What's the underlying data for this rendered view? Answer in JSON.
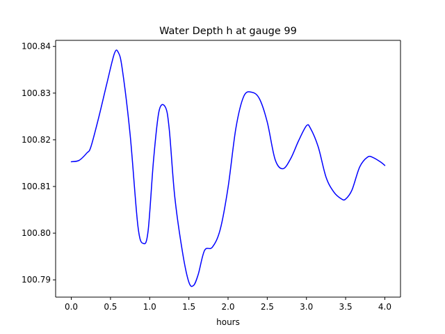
{
  "chart_data": {
    "type": "line",
    "title": "Water Depth h at gauge 99",
    "xlabel": "hours",
    "ylabel": "",
    "xlim": [
      -0.2,
      4.2
    ],
    "ylim": [
      100.7863,
      100.8413
    ],
    "grid": false,
    "legend": "none",
    "x_ticks": [
      0.0,
      0.5,
      1.0,
      1.5,
      2.0,
      2.5,
      3.0,
      3.5,
      4.0
    ],
    "x_tick_labels": [
      "0.0",
      "0.5",
      "1.0",
      "1.5",
      "2.0",
      "2.5",
      "3.0",
      "3.5",
      "4.0"
    ],
    "y_ticks": [
      100.79,
      100.8,
      100.81,
      100.82,
      100.83,
      100.84
    ],
    "y_tick_labels": [
      "100.79",
      "100.80",
      "100.81",
      "100.82",
      "100.83",
      "100.84"
    ],
    "series": [
      {
        "name": "h",
        "color": "#0000ff",
        "x": [
          0.0,
          0.1,
          0.2,
          0.25,
          0.35,
          0.45,
          0.55,
          0.6,
          0.65,
          0.75,
          0.85,
          0.92,
          0.98,
          1.05,
          1.12,
          1.2,
          1.25,
          1.32,
          1.42,
          1.5,
          1.56,
          1.62,
          1.7,
          1.8,
          1.9,
          2.0,
          2.1,
          2.2,
          2.3,
          2.4,
          2.5,
          2.6,
          2.7,
          2.8,
          2.9,
          3.0,
          3.05,
          3.15,
          3.25,
          3.35,
          3.45,
          3.5,
          3.58,
          3.68,
          3.78,
          3.85,
          3.95,
          4.0
        ],
        "values": [
          100.8153,
          100.8156,
          100.8172,
          100.8185,
          100.8248,
          100.8318,
          100.8385,
          100.8387,
          100.8352,
          100.8212,
          100.8015,
          100.7978,
          100.8005,
          100.8158,
          100.8262,
          100.827,
          100.8222,
          100.8078,
          100.7958,
          100.7895,
          100.7888,
          100.7912,
          100.7963,
          100.797,
          100.8008,
          100.8098,
          100.8225,
          100.8293,
          100.8302,
          100.8288,
          100.8238,
          100.8158,
          100.8138,
          100.816,
          100.8198,
          100.823,
          100.8225,
          100.8185,
          100.812,
          100.8088,
          100.8073,
          100.8073,
          100.8092,
          100.8142,
          100.8163,
          100.8162,
          100.8152,
          100.8145
        ]
      }
    ]
  }
}
